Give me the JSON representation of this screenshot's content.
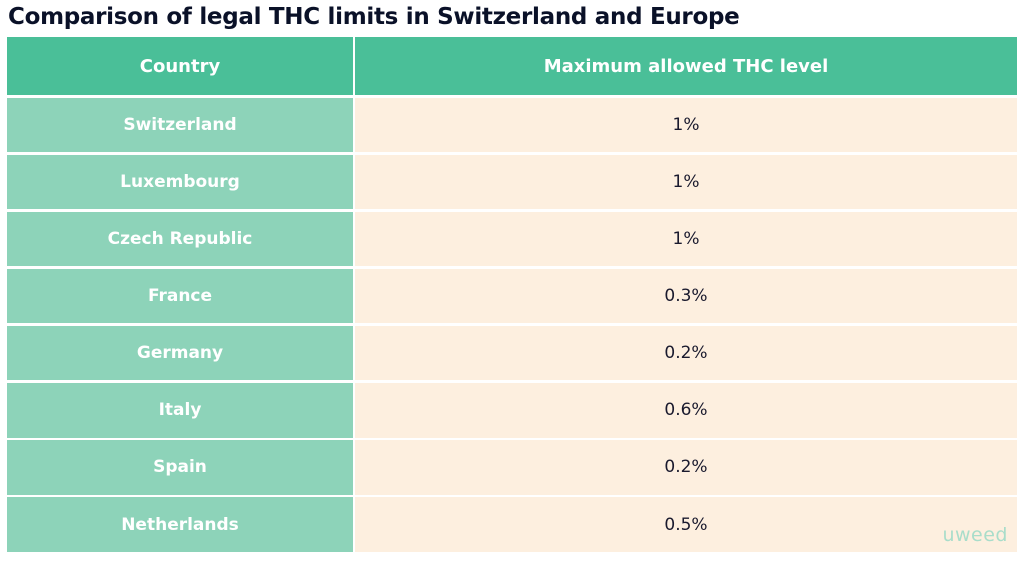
{
  "title": "Comparison of legal THC limits in Switzerland and Europe",
  "table": {
    "headers": [
      "Country",
      "Maximum allowed THC level"
    ],
    "rows": [
      [
        "Switzerland",
        "1%"
      ],
      [
        "Luxembourg",
        "1%"
      ],
      [
        "Czech Republic",
        "1%"
      ],
      [
        "France",
        "0.3%"
      ],
      [
        "Germany",
        "0.2%"
      ],
      [
        "Italy",
        "0.6%"
      ],
      [
        "Spain",
        "0.2%"
      ],
      [
        "Netherlands",
        "0.5%"
      ]
    ]
  },
  "logo_text": "uweed",
  "colors": {
    "header_bg": "#4abf98",
    "country_bg": "#8dd3b9",
    "value_bg": "#fdefdf",
    "title": "#0a1128"
  }
}
